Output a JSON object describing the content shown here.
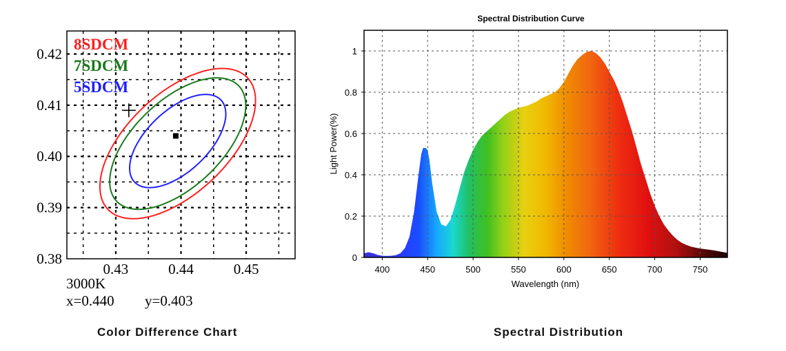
{
  "chart_data": [
    {
      "type": "scatter",
      "caption": "Color Difference Chart",
      "x_ticks": [
        "0.43",
        "0.44",
        "0.45"
      ],
      "y_ticks": [
        "0.42",
        "0.41",
        "0.40",
        "0.39",
        "0.38"
      ],
      "xlim": [
        0.4225,
        0.4575
      ],
      "ylim": [
        0.38,
        0.4245
      ],
      "grid": true,
      "legend": [
        {
          "label": "8SDCM",
          "color": "#ff2020"
        },
        {
          "label": "7SDCM",
          "color": "#1a7a1a"
        },
        {
          "label": "5SDCM",
          "color": "#2020ff"
        }
      ],
      "ellipses": [
        {
          "name": "8SDCM",
          "cx": 0.4395,
          "cy": 0.4025,
          "a": 0.0169,
          "b": 0.0085,
          "angle_deg": 55,
          "color": "#ff2020"
        },
        {
          "name": "7SDCM",
          "cx": 0.4395,
          "cy": 0.4025,
          "a": 0.0148,
          "b": 0.0074,
          "angle_deg": 55,
          "color": "#1a7a1a"
        },
        {
          "name": "5SDCM",
          "cx": 0.4395,
          "cy": 0.403,
          "a": 0.0105,
          "b": 0.0052,
          "angle_deg": 55,
          "color": "#2020ff"
        }
      ],
      "points": [
        {
          "marker": "square",
          "x": 0.4392,
          "y": 0.404
        },
        {
          "marker": "cross",
          "x": 0.432,
          "y": 0.409
        }
      ],
      "annotation_cct": "3000K",
      "annotation_x": "x=0.440",
      "annotation_y": "y=0.403"
    },
    {
      "type": "area",
      "title": "Spectral Distribution Curve",
      "caption": "Spectral Distribution",
      "xlabel": "Wavelength (nm)",
      "ylabel": "Light Power(%)",
      "x_ticks": [
        "400",
        "450",
        "500",
        "550",
        "600",
        "650",
        "700",
        "750"
      ],
      "y_ticks": [
        "0",
        "0.2",
        "0.4",
        "0.6",
        "0.8",
        "1"
      ],
      "xlim": [
        380,
        780
      ],
      "ylim": [
        0,
        1.1
      ],
      "grid": true,
      "x": [
        380,
        385,
        390,
        395,
        400,
        405,
        410,
        415,
        420,
        425,
        430,
        435,
        440,
        443,
        445,
        448,
        450,
        452,
        455,
        460,
        465,
        470,
        475,
        480,
        485,
        490,
        495,
        500,
        505,
        510,
        515,
        520,
        525,
        530,
        535,
        540,
        545,
        550,
        555,
        560,
        565,
        570,
        575,
        580,
        585,
        590,
        595,
        600,
        605,
        610,
        615,
        620,
        625,
        630,
        635,
        640,
        645,
        650,
        655,
        660,
        665,
        670,
        675,
        680,
        685,
        690,
        695,
        700,
        705,
        710,
        715,
        720,
        725,
        730,
        735,
        740,
        745,
        750,
        755,
        760,
        765,
        770,
        775,
        780
      ],
      "y": [
        0.02,
        0.025,
        0.02,
        0.012,
        0.008,
        0.007,
        0.008,
        0.011,
        0.02,
        0.045,
        0.1,
        0.22,
        0.4,
        0.5,
        0.53,
        0.53,
        0.52,
        0.47,
        0.36,
        0.22,
        0.16,
        0.15,
        0.18,
        0.25,
        0.33,
        0.41,
        0.47,
        0.52,
        0.56,
        0.59,
        0.61,
        0.63,
        0.65,
        0.67,
        0.69,
        0.705,
        0.715,
        0.725,
        0.73,
        0.735,
        0.745,
        0.755,
        0.77,
        0.78,
        0.79,
        0.8,
        0.82,
        0.85,
        0.89,
        0.93,
        0.96,
        0.98,
        0.995,
        1.0,
        0.99,
        0.97,
        0.94,
        0.9,
        0.86,
        0.81,
        0.75,
        0.68,
        0.61,
        0.53,
        0.45,
        0.38,
        0.31,
        0.25,
        0.2,
        0.16,
        0.13,
        0.105,
        0.085,
        0.07,
        0.06,
        0.052,
        0.047,
        0.043,
        0.04,
        0.037,
        0.034,
        0.03,
        0.026,
        0.022
      ]
    }
  ]
}
